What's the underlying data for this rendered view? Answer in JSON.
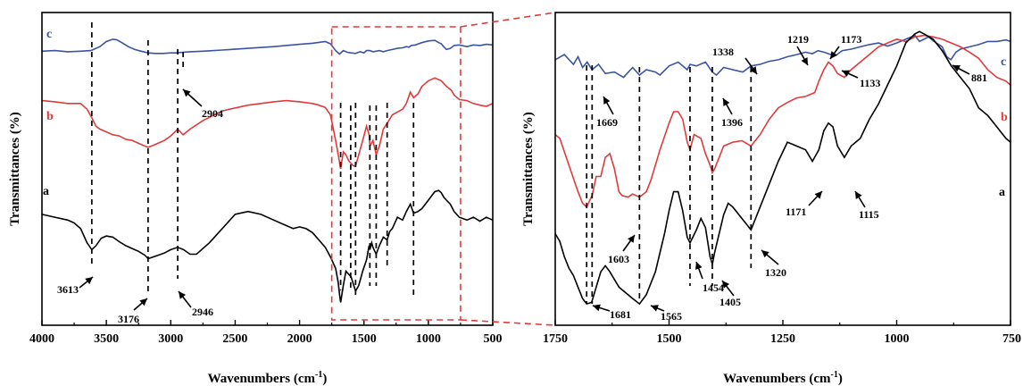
{
  "chart_data": [
    {
      "type": "line",
      "panel": "full-range",
      "xlabel": "Wavenumbers (cm",
      "xlabel_sup": "-1",
      "xlabel_tail": ")",
      "ylabel": "Transmittances (%)",
      "xlim": [
        4000,
        500
      ],
      "x_reversed": true,
      "xticks": [
        4000,
        3500,
        3000,
        2500,
        2000,
        1500,
        1000,
        500
      ],
      "grid": false,
      "zoom_box_x": [
        1750,
        750
      ],
      "series": [
        {
          "name": "c",
          "color": "#3a53a4",
          "x": [
            4000,
            3900,
            3800,
            3700,
            3620,
            3550,
            3500,
            3450,
            3420,
            3380,
            3330,
            3280,
            3230,
            3176,
            3120,
            3060,
            3000,
            2960,
            2904,
            2850,
            2750,
            2600,
            2400,
            2200,
            2000,
            1900,
            1800,
            1760,
            1720,
            1690,
            1660,
            1630,
            1600,
            1565,
            1530,
            1500,
            1480,
            1454,
            1430,
            1405,
            1380,
            1350,
            1320,
            1280,
            1240,
            1200,
            1173,
            1150,
            1133,
            1100,
            1050,
            1000,
            950,
            920,
            900,
            881,
            860,
            830,
            800,
            760,
            700,
            650,
            600,
            550,
            500
          ],
          "y": [
            0.13,
            0.12,
            0.14,
            0.13,
            0.12,
            0.05,
            -0.04,
            -0.08,
            -0.07,
            -0.02,
            0.05,
            0.1,
            0.13,
            0.16,
            0.17,
            0.17,
            0.16,
            0.16,
            0.15,
            0.14,
            0.13,
            0.11,
            0.08,
            0.05,
            0.01,
            -0.01,
            -0.04,
            0.0,
            0.12,
            0.18,
            0.12,
            0.15,
            0.16,
            0.17,
            0.14,
            0.16,
            0.12,
            0.12,
            0.14,
            0.13,
            0.12,
            0.14,
            0.12,
            0.1,
            0.08,
            0.07,
            0.05,
            0.06,
            0.03,
            0.02,
            -0.02,
            -0.05,
            -0.06,
            -0.02,
            0.0,
            0.05,
            0.1,
            0.08,
            0.03,
            0.02,
            0.05,
            0.02,
            0.03,
            0.01,
            0.02
          ]
        },
        {
          "name": "b",
          "color": "#e03a3a",
          "x": [
            4000,
            3900,
            3800,
            3700,
            3650,
            3613,
            3580,
            3550,
            3500,
            3450,
            3400,
            3350,
            3300,
            3250,
            3200,
            3176,
            3150,
            3100,
            3050,
            3000,
            2946,
            2904,
            2850,
            2750,
            2600,
            2400,
            2200,
            2100,
            2000,
            1900,
            1850,
            1800,
            1760,
            1720,
            1700,
            1681,
            1660,
            1640,
            1620,
            1603,
            1580,
            1565,
            1540,
            1510,
            1480,
            1460,
            1454,
            1430,
            1405,
            1380,
            1350,
            1320,
            1280,
            1240,
            1200,
            1171,
            1140,
            1115,
            1080,
            1050,
            1000,
            950,
            900,
            860,
            820,
            800,
            760,
            700,
            650,
            600,
            550,
            500
          ],
          "y": [
            1.0,
            1.02,
            1.05,
            1.05,
            1.15,
            1.3,
            1.45,
            1.5,
            1.55,
            1.6,
            1.62,
            1.68,
            1.7,
            1.75,
            1.8,
            1.82,
            1.8,
            1.75,
            1.7,
            1.62,
            1.5,
            1.6,
            1.5,
            1.35,
            1.18,
            1.08,
            1.02,
            1.0,
            1.02,
            1.05,
            1.08,
            1.12,
            1.25,
            1.7,
            1.95,
            2.2,
            1.9,
            1.95,
            2.05,
            2.1,
            2.15,
            2.15,
            1.95,
            1.7,
            1.45,
            1.6,
            1.8,
            1.7,
            1.95,
            1.8,
            1.5,
            1.4,
            1.25,
            1.2,
            1.15,
            1.05,
            0.85,
            0.95,
            0.88,
            0.75,
            0.65,
            0.6,
            0.65,
            0.75,
            0.82,
            0.9,
            0.98,
            1.0,
            1.05,
            1.08,
            1.1,
            1.05
          ]
        },
        {
          "name": "a",
          "color": "#000000",
          "x": [
            4000,
            3900,
            3800,
            3750,
            3700,
            3650,
            3613,
            3580,
            3540,
            3500,
            3450,
            3400,
            3350,
            3300,
            3250,
            3200,
            3176,
            3150,
            3100,
            3050,
            3000,
            2946,
            2900,
            2850,
            2800,
            2700,
            2600,
            2500,
            2400,
            2300,
            2200,
            2100,
            2050,
            2000,
            1950,
            1900,
            1850,
            1800,
            1760,
            1740,
            1720,
            1700,
            1690,
            1681,
            1660,
            1640,
            1620,
            1600,
            1565,
            1540,
            1510,
            1480,
            1460,
            1454,
            1440,
            1430,
            1405,
            1380,
            1350,
            1320,
            1300,
            1280,
            1240,
            1200,
            1171,
            1140,
            1115,
            1080,
            1050,
            1000,
            950,
            920,
            900,
            880,
            860,
            830,
            800,
            760,
            700,
            650,
            600,
            550,
            500
          ],
          "y": [
            3.0,
            3.05,
            3.1,
            3.15,
            3.25,
            3.5,
            3.62,
            3.55,
            3.42,
            3.38,
            3.4,
            3.48,
            3.55,
            3.6,
            3.65,
            3.72,
            3.78,
            3.76,
            3.72,
            3.68,
            3.62,
            3.58,
            3.62,
            3.7,
            3.7,
            3.5,
            3.25,
            3.0,
            2.95,
            3.0,
            3.1,
            3.2,
            3.25,
            3.22,
            3.25,
            3.32,
            3.45,
            3.58,
            3.75,
            3.85,
            3.95,
            4.2,
            4.4,
            4.55,
            4.25,
            4.0,
            4.05,
            4.1,
            4.35,
            4.25,
            4.0,
            3.8,
            3.55,
            3.62,
            3.5,
            3.58,
            3.7,
            3.55,
            3.4,
            3.45,
            3.3,
            3.25,
            3.05,
            3.1,
            2.95,
            2.82,
            2.98,
            2.95,
            2.9,
            2.75,
            2.6,
            2.58,
            2.62,
            2.7,
            2.75,
            2.82,
            2.95,
            3.05,
            3.1,
            3.05,
            3.12,
            3.05,
            3.1
          ]
        }
      ],
      "ref_lines": [
        3613,
        3176,
        2946,
        2904,
        1681,
        1603,
        1565,
        1454,
        1405,
        1320,
        1115
      ],
      "annotations": [
        {
          "text": "3613",
          "series": "a"
        },
        {
          "text": "3176",
          "series": "a"
        },
        {
          "text": "2946",
          "series": "a"
        },
        {
          "text": "2904",
          "series": "c"
        }
      ],
      "series_labels": [
        "c",
        "b",
        "a"
      ]
    },
    {
      "type": "line",
      "panel": "zoom",
      "xlabel": "Wavenumbers (cm",
      "xlabel_sup": "-1",
      "xlabel_tail": ")",
      "ylabel": "Transmittances (%)",
      "xlim": [
        1750,
        750
      ],
      "x_reversed": true,
      "xticks": [
        1750,
        1500,
        1250,
        1000,
        750
      ],
      "grid": false,
      "series": [
        {
          "name": "c",
          "color": "#3a53a4",
          "x": [
            1750,
            1730,
            1710,
            1700,
            1690,
            1680,
            1669,
            1655,
            1640,
            1620,
            1600,
            1580,
            1565,
            1550,
            1530,
            1520,
            1500,
            1480,
            1460,
            1454,
            1440,
            1420,
            1405,
            1396,
            1380,
            1360,
            1338,
            1320,
            1300,
            1280,
            1260,
            1240,
            1219,
            1200,
            1185,
            1173,
            1160,
            1145,
            1133,
            1120,
            1100,
            1080,
            1060,
            1040,
            1020,
            1000,
            980,
            960,
            950,
            940,
            930,
            920,
            900,
            890,
            881,
            870,
            860,
            840,
            820,
            800,
            780,
            760,
            750
          ],
          "y": [
            0.22,
            0.15,
            0.28,
            0.18,
            0.32,
            0.25,
            0.35,
            0.28,
            0.4,
            0.38,
            0.45,
            0.32,
            0.42,
            0.35,
            0.38,
            0.42,
            0.3,
            0.25,
            0.35,
            0.28,
            0.3,
            0.25,
            0.38,
            0.42,
            0.32,
            0.35,
            0.38,
            0.3,
            0.28,
            0.24,
            0.22,
            0.18,
            0.15,
            0.12,
            0.14,
            0.1,
            0.12,
            0.15,
            0.16,
            0.1,
            0.08,
            0.05,
            0.02,
            0.0,
            0.04,
            0.0,
            -0.05,
            -0.1,
            -0.02,
            -0.05,
            -0.08,
            -0.03,
            0.05,
            0.18,
            0.22,
            0.12,
            0.08,
            0.05,
            0.02,
            -0.02,
            -0.02,
            -0.04,
            -0.02
          ]
        },
        {
          "name": "b",
          "color": "#e03a3a",
          "x": [
            1750,
            1740,
            1720,
            1700,
            1690,
            1681,
            1669,
            1660,
            1650,
            1640,
            1630,
            1620,
            1610,
            1603,
            1590,
            1580,
            1565,
            1550,
            1540,
            1520,
            1500,
            1490,
            1480,
            1470,
            1460,
            1454,
            1445,
            1430,
            1420,
            1410,
            1405,
            1400,
            1390,
            1380,
            1360,
            1340,
            1320,
            1300,
            1280,
            1260,
            1240,
            1220,
            1200,
            1180,
            1171,
            1160,
            1150,
            1140,
            1130,
            1115,
            1100,
            1080,
            1060,
            1040,
            1020,
            1000,
            980,
            960,
            940,
            920,
            900,
            880,
            860,
            840,
            820,
            800,
            780,
            760,
            750
          ],
          "y": [
            1.2,
            1.25,
            1.6,
            1.95,
            2.1,
            2.15,
            2.0,
            1.75,
            1.75,
            1.5,
            1.45,
            1.65,
            1.95,
            2.0,
            2.02,
            1.98,
            2.02,
            1.95,
            1.8,
            1.4,
            1.05,
            0.9,
            0.9,
            1.0,
            1.3,
            1.4,
            1.2,
            1.25,
            1.45,
            1.6,
            1.7,
            1.65,
            1.5,
            1.35,
            1.3,
            1.28,
            1.35,
            1.2,
            1.0,
            0.85,
            0.78,
            0.72,
            0.7,
            0.65,
            0.5,
            0.35,
            0.25,
            0.3,
            0.4,
            0.45,
            0.35,
            0.25,
            0.15,
            0.05,
            0.0,
            -0.05,
            -0.02,
            -0.08,
            -0.1,
            -0.08,
            -0.05,
            0.0,
            0.05,
            0.12,
            0.2,
            0.35,
            0.45,
            0.5,
            0.55
          ]
        },
        {
          "name": "a",
          "color": "#000000",
          "x": [
            1750,
            1740,
            1730,
            1720,
            1710,
            1700,
            1690,
            1681,
            1670,
            1660,
            1650,
            1640,
            1630,
            1620,
            1610,
            1600,
            1590,
            1580,
            1565,
            1550,
            1530,
            1510,
            1500,
            1490,
            1480,
            1470,
            1460,
            1454,
            1440,
            1430,
            1420,
            1410,
            1405,
            1400,
            1390,
            1380,
            1370,
            1360,
            1340,
            1320,
            1310,
            1300,
            1280,
            1260,
            1240,
            1220,
            1200,
            1185,
            1171,
            1160,
            1150,
            1140,
            1130,
            1115,
            1100,
            1080,
            1060,
            1040,
            1020,
            1000,
            980,
            960,
            950,
            940,
            920,
            900,
            880,
            860,
            840,
            820,
            800,
            780,
            760,
            750
          ],
          "y": [
            2.5,
            2.6,
            2.8,
            2.95,
            3.05,
            3.2,
            3.35,
            3.42,
            3.4,
            3.2,
            3.0,
            2.92,
            3.0,
            3.1,
            3.2,
            3.25,
            3.3,
            3.35,
            3.42,
            3.3,
            3.0,
            2.5,
            2.2,
            1.95,
            1.95,
            2.2,
            2.55,
            2.62,
            2.45,
            2.3,
            2.42,
            2.8,
            2.9,
            2.75,
            2.5,
            2.25,
            2.1,
            2.15,
            2.3,
            2.45,
            2.3,
            2.15,
            1.85,
            1.55,
            1.3,
            1.35,
            1.4,
            1.55,
            1.4,
            1.15,
            1.05,
            1.1,
            1.35,
            1.5,
            1.35,
            1.25,
            1.0,
            0.8,
            0.55,
            0.3,
            0.0,
            -0.12,
            -0.15,
            -0.12,
            -0.05,
            0.1,
            0.3,
            0.45,
            0.6,
            0.85,
            0.95,
            1.1,
            1.25,
            1.3
          ]
        }
      ],
      "ref_lines": [
        1681,
        1669,
        1565,
        1454,
        1405,
        1320,
        1219,
        1173,
        1133,
        881
      ],
      "annotations": [
        {
          "text": "1669",
          "series": "b"
        },
        {
          "text": "1396",
          "series": "c"
        },
        {
          "text": "1338",
          "series": "c"
        },
        {
          "text": "1219",
          "series": "c"
        },
        {
          "text": "1173",
          "series": "c"
        },
        {
          "text": "1133",
          "series": "c"
        },
        {
          "text": "881",
          "series": "c"
        },
        {
          "text": "1603",
          "series": "b"
        },
        {
          "text": "1171",
          "series": "b"
        },
        {
          "text": "1115",
          "series": "b"
        },
        {
          "text": "1681",
          "series": "a"
        },
        {
          "text": "1565",
          "series": "a"
        },
        {
          "text": "1454",
          "series": "a"
        },
        {
          "text": "1405",
          "series": "a"
        },
        {
          "text": "1320",
          "series": "a"
        }
      ],
      "series_labels": [
        "c",
        "b",
        "a"
      ]
    }
  ]
}
